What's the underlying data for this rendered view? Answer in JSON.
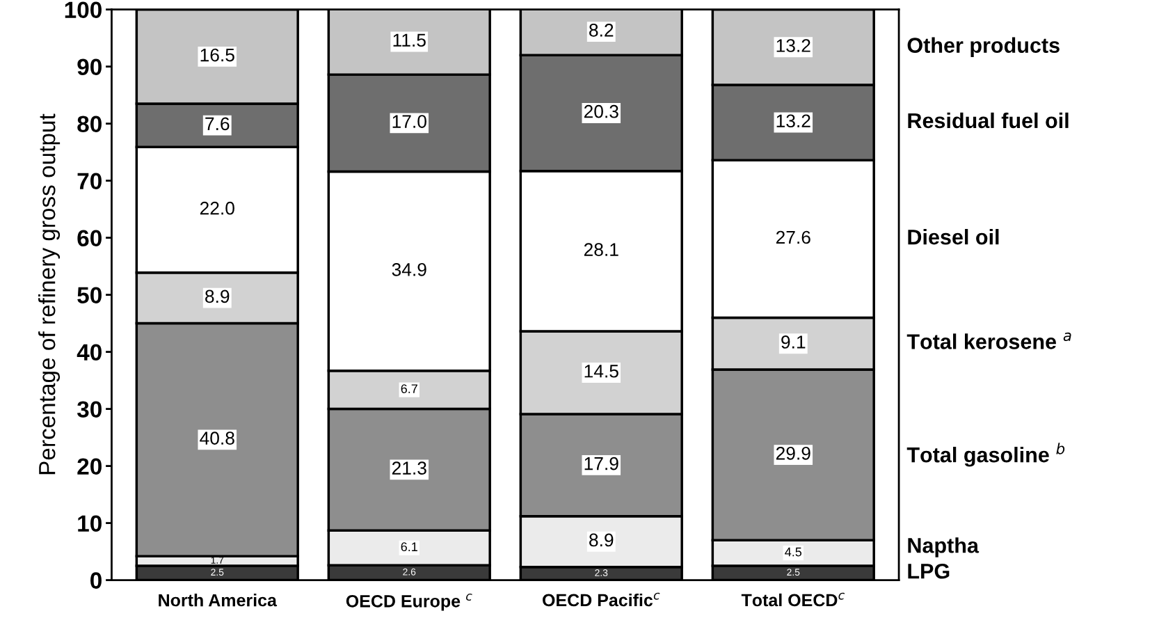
{
  "chart_data": {
    "type": "bar",
    "stacked": true,
    "ylabel": "Percentage of refinery gross output",
    "categories": [
      "North America",
      "OECD Europe $^{c}$",
      "OECD Pacific$^{c}$",
      "Total OECD$^{c}$"
    ],
    "series": [
      {
        "name": "LPG",
        "color": "#3a3a3a",
        "values": [
          2.5,
          2.6,
          2.3,
          2.5
        ],
        "value_labels": [
          "2.5",
          "2.6",
          "2.3",
          "2.5"
        ]
      },
      {
        "name": "Naptha",
        "color": "#ebebeb",
        "values": [
          1.7,
          6.1,
          8.9,
          4.5
        ],
        "value_labels": [
          "1.7",
          "6.1",
          "8.9",
          "4.5"
        ]
      },
      {
        "name": "Total gasoline $^{b}$",
        "color": "#8e8e8e",
        "values": [
          40.8,
          21.3,
          17.9,
          29.9
        ],
        "value_labels": [
          "40.8",
          "21.3",
          "17.9",
          "29.9"
        ]
      },
      {
        "name": "Total kerosene $^{a}$",
        "color": "#d2d2d2",
        "values": [
          8.9,
          6.7,
          14.5,
          9.1
        ],
        "value_labels": [
          "8.9",
          "6.7",
          "14.5",
          "9.1"
        ]
      },
      {
        "name": "Diesel oil",
        "color": "#ffffff",
        "values": [
          22.0,
          34.9,
          28.1,
          27.6
        ],
        "value_labels": [
          "22.0",
          "34.9",
          "28.1",
          "27.6"
        ]
      },
      {
        "name": "Residual fuel oil",
        "color": "#6e6e6e",
        "values": [
          7.6,
          17.0,
          20.3,
          13.2
        ],
        "value_labels": [
          "7.6",
          "17.0",
          "20.3",
          "13.2"
        ]
      },
      {
        "name": "Other products",
        "color": "#c4c4c4",
        "values": [
          16.5,
          11.5,
          8.2,
          13.2
        ],
        "value_labels": [
          "16.5",
          "11.5",
          "8.2",
          "13.2"
        ]
      }
    ],
    "ylim": [
      0,
      100
    ],
    "yticks": [
      0,
      10,
      20,
      30,
      40,
      50,
      60,
      70,
      80,
      90,
      100
    ],
    "grid": false,
    "legend": false
  }
}
